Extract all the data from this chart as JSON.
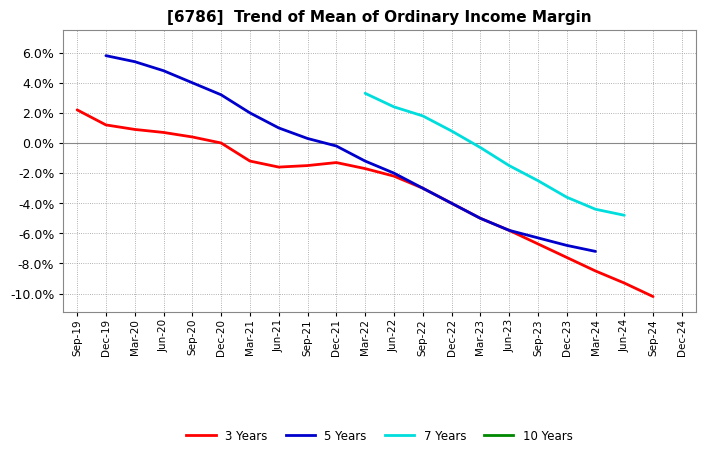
{
  "title": "[6786]  Trend of Mean of Ordinary Income Margin",
  "title_fontsize": 11,
  "background_color": "#ffffff",
  "grid_color": "#999999",
  "x_labels": [
    "Sep-19",
    "Dec-19",
    "Mar-20",
    "Jun-20",
    "Sep-20",
    "Dec-20",
    "Mar-21",
    "Jun-21",
    "Sep-21",
    "Dec-21",
    "Mar-22",
    "Jun-22",
    "Sep-22",
    "Dec-22",
    "Mar-23",
    "Jun-23",
    "Sep-23",
    "Dec-23",
    "Mar-24",
    "Jun-24",
    "Sep-24",
    "Dec-24"
  ],
  "ylim": [
    -0.112,
    0.075
  ],
  "yticks": [
    -0.1,
    -0.08,
    -0.06,
    -0.04,
    -0.02,
    0.0,
    0.02,
    0.04,
    0.06
  ],
  "series": {
    "3 Years": {
      "color": "#ff0000",
      "values": [
        0.022,
        0.012,
        0.009,
        0.007,
        0.004,
        0.0,
        -0.012,
        -0.016,
        -0.015,
        -0.013,
        -0.017,
        -0.022,
        -0.03,
        -0.04,
        -0.05,
        -0.058,
        -0.067,
        -0.076,
        -0.085,
        -0.093,
        -0.102,
        null
      ]
    },
    "5 Years": {
      "color": "#0000cc",
      "values": [
        null,
        0.058,
        0.054,
        0.048,
        0.04,
        0.032,
        0.02,
        0.01,
        0.003,
        -0.002,
        -0.012,
        -0.02,
        -0.03,
        -0.04,
        -0.05,
        -0.058,
        -0.063,
        -0.068,
        -0.072,
        null,
        null,
        null
      ]
    },
    "7 Years": {
      "color": "#00dddd",
      "values": [
        null,
        null,
        null,
        null,
        null,
        null,
        null,
        null,
        null,
        null,
        0.033,
        0.024,
        0.018,
        0.008,
        -0.003,
        -0.015,
        -0.025,
        -0.036,
        -0.044,
        -0.048,
        null,
        null
      ]
    },
    "10 Years": {
      "color": "#008800",
      "values": [
        null,
        null,
        null,
        null,
        null,
        null,
        null,
        null,
        null,
        null,
        null,
        null,
        null,
        null,
        null,
        null,
        null,
        null,
        null,
        null,
        null,
        null
      ]
    }
  },
  "legend_entries": [
    "3 Years",
    "5 Years",
    "7 Years",
    "10 Years"
  ],
  "legend_colors": [
    "#ff0000",
    "#0000cc",
    "#00dddd",
    "#008800"
  ]
}
